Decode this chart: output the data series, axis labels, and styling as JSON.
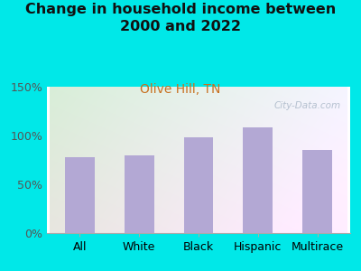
{
  "title": "Change in household income between\n2000 and 2022",
  "subtitle": "Olive Hill, TN",
  "categories": [
    "All",
    "White",
    "Black",
    "Hispanic",
    "Multirace"
  ],
  "values": [
    78,
    80,
    98,
    108,
    85
  ],
  "bar_color": "#b3a8d4",
  "title_fontsize": 11.5,
  "subtitle_fontsize": 10,
  "subtitle_color": "#c87020",
  "tick_label_fontsize": 9,
  "ytick_labels": [
    "0%",
    "50%",
    "100%",
    "150%"
  ],
  "ytick_values": [
    0,
    50,
    100,
    150
  ],
  "ylim": [
    0,
    150
  ],
  "background_color": "#00e8e8",
  "plot_bg_left_color": "#d6edd6",
  "plot_bg_right_color": "#eeeeff",
  "watermark": "City-Data.com"
}
